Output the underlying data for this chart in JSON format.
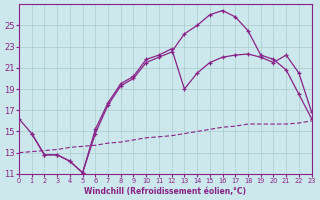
{
  "xlabel": "Windchill (Refroidissement éolien,°C)",
  "bg_color": "#cce8ec",
  "grid_color": "#aacccc",
  "line_color": "#882288",
  "xlim": [
    0,
    23
  ],
  "ylim": [
    11,
    27
  ],
  "yticks": [
    11,
    13,
    15,
    17,
    19,
    21,
    23,
    25
  ],
  "xticks": [
    0,
    1,
    2,
    3,
    4,
    5,
    6,
    7,
    8,
    9,
    10,
    11,
    12,
    13,
    14,
    15,
    16,
    17,
    18,
    19,
    20,
    21,
    22,
    23
  ],
  "line1_x": [
    0,
    1,
    2,
    3,
    4,
    5,
    6,
    7,
    8,
    9,
    10,
    11,
    12,
    13,
    14,
    15,
    16,
    17,
    18,
    19,
    20,
    21,
    22,
    23
  ],
  "line1_y": [
    16.2,
    14.8,
    12.8,
    12.8,
    12.2,
    11.1,
    14.8,
    17.5,
    19.3,
    20.0,
    21.5,
    22.0,
    22.5,
    24.2,
    25.0,
    26.0,
    26.4,
    25.8,
    24.5,
    22.2,
    21.8,
    20.8,
    18.5,
    16.2
  ],
  "line2_x": [
    1,
    2,
    3,
    4,
    5,
    6,
    7,
    8,
    9,
    10,
    11,
    12,
    13,
    14,
    15,
    16,
    17,
    18,
    19,
    20,
    21,
    22,
    23
  ],
  "line2_y": [
    14.8,
    12.8,
    12.8,
    12.2,
    11.1,
    15.2,
    17.7,
    19.5,
    20.2,
    21.8,
    22.2,
    22.8,
    19.0,
    20.5,
    21.5,
    22.0,
    22.2,
    22.3,
    22.0,
    21.5,
    22.2,
    20.5,
    16.8
  ],
  "line3_x": [
    0,
    1,
    2,
    3,
    4,
    5,
    6,
    7,
    8,
    9,
    10,
    11,
    12,
    13,
    14,
    15,
    16,
    17,
    18,
    19,
    20,
    21,
    22,
    23
  ],
  "line3_y": [
    13.0,
    13.1,
    13.2,
    13.3,
    13.5,
    13.6,
    13.7,
    13.9,
    14.0,
    14.2,
    14.4,
    14.5,
    14.6,
    14.8,
    15.0,
    15.2,
    15.4,
    15.5,
    15.7,
    15.7,
    15.7,
    15.7,
    15.8,
    16.0
  ]
}
